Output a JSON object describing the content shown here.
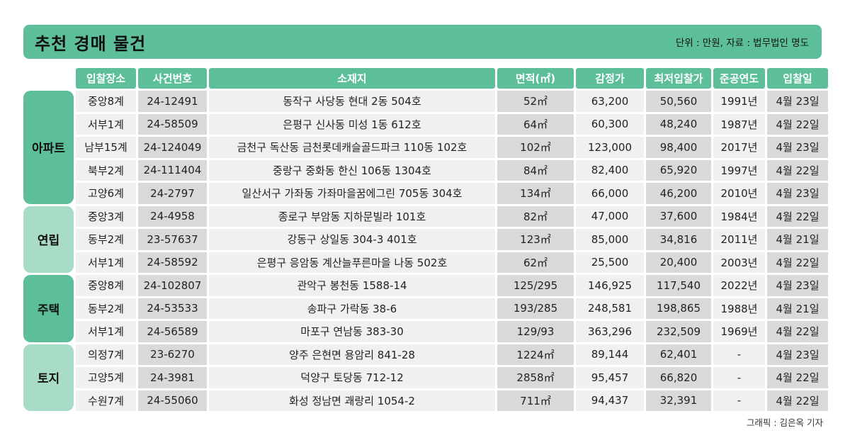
{
  "header": {
    "title": "추천 경매 물건",
    "unit_note": "단위 : 만원, 자료 : 법무법인 명도",
    "accent_color": "#5cbf9a",
    "light_accent_color": "#a9dcc7"
  },
  "columns": [
    "입찰장소",
    "사건번호",
    "소재지",
    "면적(㎡)",
    "감정가",
    "최저입찰가",
    "준공연도",
    "입찰일"
  ],
  "categories": [
    {
      "label": "아파트",
      "rows": 5
    },
    {
      "label": "연립",
      "rows": 3
    },
    {
      "label": "주택",
      "rows": 3
    },
    {
      "label": "토지",
      "rows": 3
    }
  ],
  "rows": [
    {
      "place": "중앙8계",
      "case": "24-12491",
      "address": "동작구 사당동 현대 2동 504호",
      "area": "52㎡",
      "appraisal": "63,200",
      "min_bid": "50,560",
      "year": "1991년",
      "date": "4월 23일"
    },
    {
      "place": "서부1계",
      "case": "24-58509",
      "address": "은평구 신사동 미성 1동 612호",
      "area": "64㎡",
      "appraisal": "60,300",
      "min_bid": "48,240",
      "year": "1987년",
      "date": "4월 22일"
    },
    {
      "place": "남부15계",
      "case": "24-124049",
      "address": "금천구 독산동 금천롯데캐슬골드파크 110동 102호",
      "area": "102㎡",
      "appraisal": "123,000",
      "min_bid": "98,400",
      "year": "2017년",
      "date": "4월 23일"
    },
    {
      "place": "북부2계",
      "case": "24-111404",
      "address": "중랑구 중화동 한신 106동 1304호",
      "area": "84㎡",
      "appraisal": "82,400",
      "min_bid": "65,920",
      "year": "1997년",
      "date": "4월 22일"
    },
    {
      "place": "고양6계",
      "case": "24-2797",
      "address": "일산서구 가좌동 가좌마을꿈에그린 705동 304호",
      "area": "134㎡",
      "appraisal": "66,000",
      "min_bid": "46,200",
      "year": "2010년",
      "date": "4월 23일"
    },
    {
      "place": "중앙3계",
      "case": "24-4958",
      "address": "종로구 부암동 지하문빌라 101호",
      "area": "82㎡",
      "appraisal": "47,000",
      "min_bid": "37,600",
      "year": "1984년",
      "date": "4월 22일"
    },
    {
      "place": "동부2계",
      "case": "23-57637",
      "address": "강동구 상일동 304-3 401호",
      "area": "123㎡",
      "appraisal": "85,000",
      "min_bid": "34,816",
      "year": "2011년",
      "date": "4월 21일"
    },
    {
      "place": "서부1계",
      "case": "24-58592",
      "address": "은평구 응암동 계산늘푸른마을 나동 502호",
      "area": "62㎡",
      "appraisal": "25,500",
      "min_bid": "20,400",
      "year": "2003년",
      "date": "4월 22일"
    },
    {
      "place": "중앙8계",
      "case": "24-102807",
      "address": "관악구 봉천동 1588-14",
      "area": "125/295",
      "appraisal": "146,925",
      "min_bid": "117,540",
      "year": "2022년",
      "date": "4월 23일"
    },
    {
      "place": "동부2계",
      "case": "24-53533",
      "address": "송파구 가락동 38-6",
      "area": "193/285",
      "appraisal": "248,581",
      "min_bid": "198,865",
      "year": "1988년",
      "date": "4월 21일"
    },
    {
      "place": "서부1계",
      "case": "24-56589",
      "address": "마포구 연남동 383-30",
      "area": "129/93",
      "appraisal": "363,296",
      "min_bid": "232,509",
      "year": "1969년",
      "date": "4월 22일"
    },
    {
      "place": "의정7계",
      "case": "23-6270",
      "address": "양주 은현면 용암리 841-28",
      "area": "1224㎡",
      "appraisal": "89,144",
      "min_bid": "62,401",
      "year": "-",
      "date": "4월 23일"
    },
    {
      "place": "고양5계",
      "case": "24-3981",
      "address": "덕양구 토당동 712-12",
      "area": "2858㎡",
      "appraisal": "95,457",
      "min_bid": "66,820",
      "year": "-",
      "date": "4월 22일"
    },
    {
      "place": "수원7계",
      "case": "24-55060",
      "address": "화성 정남면 괘랑리 1054-2",
      "area": "711㎡",
      "appraisal": "94,437",
      "min_bid": "32,391",
      "year": "-",
      "date": "4월 22일"
    }
  ],
  "credit": "그래픽 : 김은옥 기자"
}
